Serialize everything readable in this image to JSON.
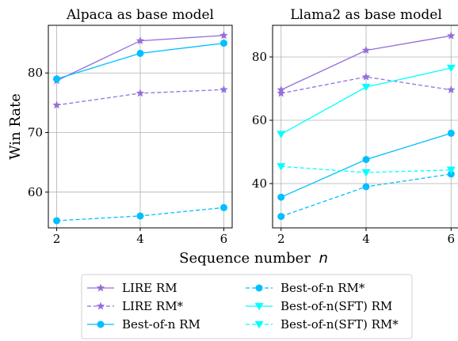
{
  "figure": {
    "ylabel": "Win Rate",
    "xlabel_text": "Sequence number",
    "xlabel_var": "n"
  },
  "legend": {
    "entries": [
      {
        "label": "LIRE RM",
        "color": "#9370db",
        "marker": "star",
        "dash": false
      },
      {
        "label": "LIRE RM*",
        "color": "#9370db",
        "marker": "star",
        "dash": true
      },
      {
        "label": "Best-of-n RM",
        "color": "#00bfff",
        "marker": "circle",
        "dash": false
      },
      {
        "label": "Best-of-n RM*",
        "color": "#00bfff",
        "marker": "circle",
        "dash": true
      },
      {
        "label": "Best-of-n(SFT) RM",
        "color": "#00ffff",
        "marker": "triangle",
        "dash": false
      },
      {
        "label": "Best-of-n(SFT) RM*",
        "color": "#00ffff",
        "marker": "triangle",
        "dash": true
      }
    ]
  },
  "chart_data": [
    {
      "type": "line",
      "title": "Alpaca as base model",
      "x": [
        2,
        4,
        6
      ],
      "xticks": [
        "2",
        "4",
        "6"
      ],
      "xlim": [
        1.8,
        6.2
      ],
      "yticks": [
        60,
        70,
        80
      ],
      "ylim": [
        54,
        88
      ],
      "grid": true,
      "series": [
        {
          "name": "LIRE RM",
          "values": [
            78.7,
            85.4,
            86.3
          ]
        },
        {
          "name": "LIRE RM*",
          "values": [
            74.6,
            76.6,
            77.2
          ]
        },
        {
          "name": "Best-of-n RM",
          "values": [
            79.0,
            83.3,
            85.0
          ]
        },
        {
          "name": "Best-of-n RM*",
          "values": [
            55.2,
            56.0,
            57.4
          ]
        }
      ]
    },
    {
      "type": "line",
      "title": "Llama2 as base model",
      "x": [
        2,
        4,
        6
      ],
      "xticks": [
        "2",
        "4",
        "6"
      ],
      "xlim": [
        1.8,
        6.2
      ],
      "yticks": [
        40,
        60,
        80
      ],
      "ylim": [
        26,
        90
      ],
      "grid": true,
      "series": [
        {
          "name": "LIRE RM",
          "values": [
            69.6,
            82.1,
            86.7
          ]
        },
        {
          "name": "LIRE RM*",
          "values": [
            68.5,
            73.7,
            69.6
          ]
        },
        {
          "name": "Best-of-n RM",
          "values": [
            35.7,
            47.6,
            55.9
          ]
        },
        {
          "name": "Best-of-n RM*",
          "values": [
            29.6,
            39.0,
            43.0
          ]
        },
        {
          "name": "Best-of-n(SFT) RM",
          "values": [
            55.6,
            70.5,
            76.5
          ]
        },
        {
          "name": "Best-of-n(SFT) RM*",
          "values": [
            45.4,
            43.5,
            44.3
          ]
        }
      ]
    }
  ]
}
